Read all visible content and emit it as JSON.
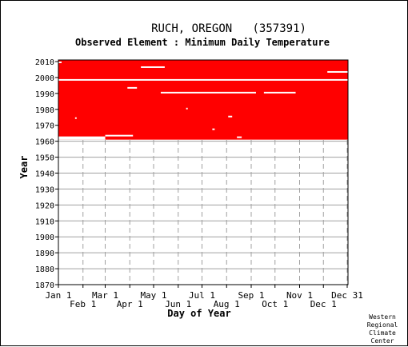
{
  "chart_data": {
    "type": "heatmap",
    "title": "RUCH, OREGON   (357391)",
    "subtitle": "Observed Element : Minimum Daily Temperature",
    "xlabel": "Day of Year",
    "ylabel": "Year",
    "x_ticks_top": [
      "Jan 1",
      "Mar 1",
      "May 1",
      "Jul 1",
      "Sep 1",
      "Nov 1",
      "Dec 31"
    ],
    "x_ticks_top_doy": [
      1,
      60,
      121,
      182,
      244,
      305,
      365
    ],
    "x_ticks_bottom": [
      "Feb 1",
      "Apr 1",
      "Jun 1",
      "Aug 1",
      "Oct 1",
      "Dec 1"
    ],
    "x_ticks_bottom_doy": [
      32,
      91,
      152,
      213,
      274,
      335
    ],
    "y_ticks": [
      "2010",
      "2000",
      "1990",
      "1980",
      "1970",
      "1960",
      "1950",
      "1940",
      "1930",
      "1920",
      "1910",
      "1900",
      "1890",
      "1880",
      "1870"
    ],
    "ylim": [
      1870,
      2011
    ],
    "xlim": [
      1,
      366
    ],
    "grid": true,
    "data_color": "#ff0000",
    "observed_year_range": [
      1961,
      2010
    ],
    "gaps": [
      {
        "year_start": 1998,
        "year_end": 1999,
        "doy_start": 1,
        "doy_end": 366
      },
      {
        "year_start": 2006,
        "year_end": 2007,
        "doy_start": 105,
        "doy_end": 135
      },
      {
        "year_start": 2003,
        "year_end": 2004,
        "doy_start": 340,
        "doy_end": 366
      },
      {
        "year_start": 1990,
        "year_end": 1991,
        "doy_start": 130,
        "doy_end": 250
      },
      {
        "year_start": 1990,
        "year_end": 1991,
        "doy_start": 260,
        "doy_end": 300
      },
      {
        "year_start": 1993,
        "year_end": 1994,
        "doy_start": 88,
        "doy_end": 100
      },
      {
        "year_start": 1961,
        "year_end": 1963,
        "doy_start": 1,
        "doy_end": 60
      },
      {
        "year_start": 1963,
        "year_end": 1964,
        "doy_start": 60,
        "doy_end": 95
      },
      {
        "year_start": 1962,
        "year_end": 1963,
        "doy_start": 226,
        "doy_end": 232
      },
      {
        "year_start": 1967,
        "year_end": 1968,
        "doy_start": 195,
        "doy_end": 198
      },
      {
        "year_start": 1975,
        "year_end": 1976,
        "doy_start": 215,
        "doy_end": 220
      },
      {
        "year_start": 1980,
        "year_end": 1981,
        "doy_start": 162,
        "doy_end": 164
      },
      {
        "year_start": 1974,
        "year_end": 1975,
        "doy_start": 22,
        "doy_end": 24
      },
      {
        "year_start": 2009,
        "year_end": 2010,
        "doy_start": 1,
        "doy_end": 5
      }
    ],
    "credit": [
      "Western",
      "Regional",
      "Climate",
      "Center"
    ]
  }
}
